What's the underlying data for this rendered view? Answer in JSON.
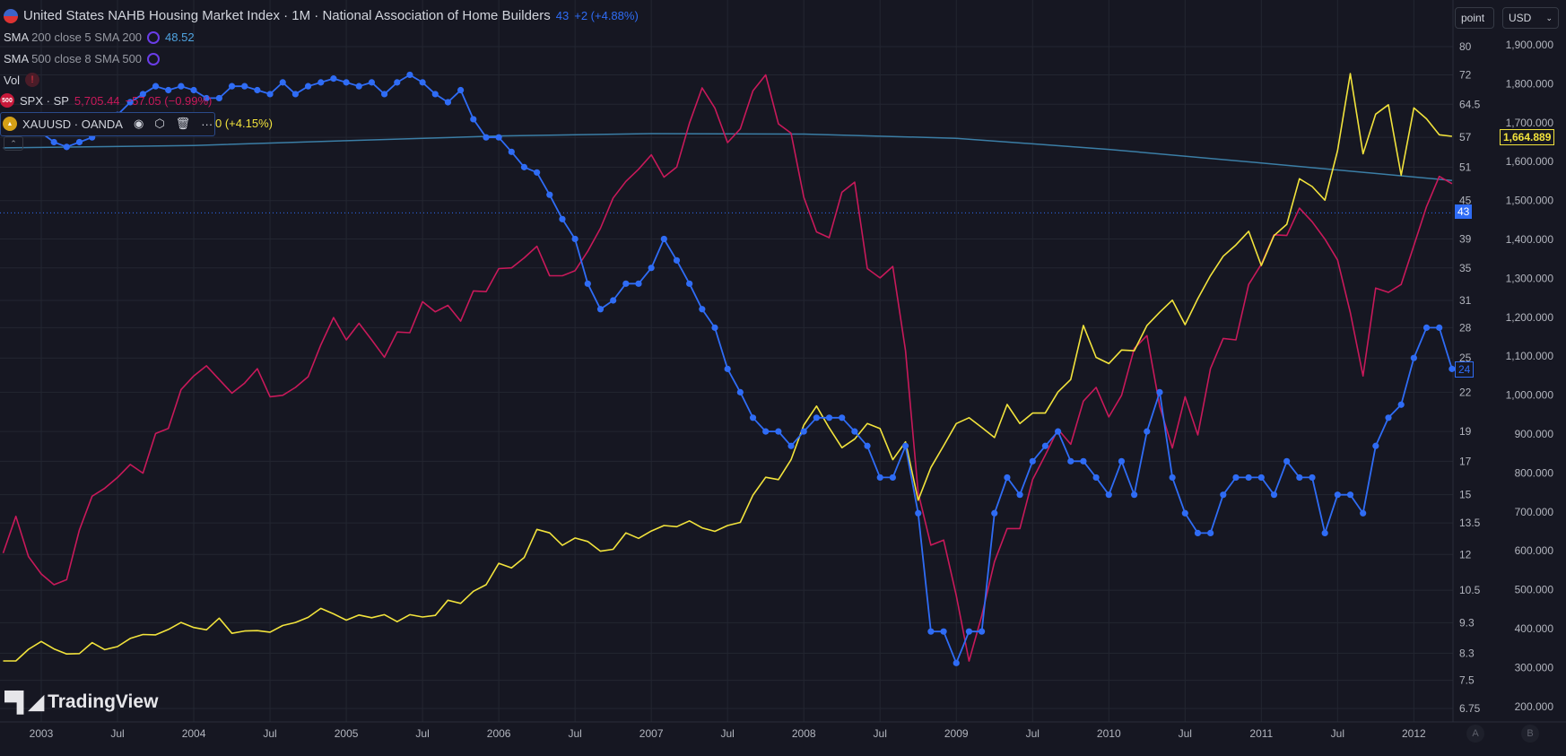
{
  "header": {
    "title": "United States NAHB Housing Market Index · 1M · National Association of Home Builders",
    "last_value": "43",
    "change": "+2 (+4.88%)"
  },
  "legend": {
    "sma200": {
      "label": "SMA",
      "params": "200 close 5 SMA 200",
      "value": "48.52"
    },
    "sma500": {
      "label": "SMA",
      "params": "500 close 8 SMA 500"
    },
    "vol": {
      "label": "Vol",
      "warning": "!"
    },
    "spx": {
      "badge": "500",
      "label": "SPX · SP",
      "value": "5,705.44",
      "change": "−57.05 (−0.99%)"
    },
    "xau": {
      "label": "XAUUSD · OANDA",
      "change": "0 (+4.15%)",
      "icons": [
        "eye-icon",
        "settings-icon",
        "trash-icon",
        "more-icon"
      ]
    }
  },
  "toolbar": {
    "scale_button": "point",
    "currency_select": "USD"
  },
  "axis_buttons": {
    "a": "A",
    "b": "B"
  },
  "logo": "TradingView",
  "price_tags": {
    "nahb_last": "43",
    "nahb_alt": "24",
    "gold_last": "1,664.889"
  },
  "colors": {
    "nahb": "#2f6cf5",
    "spx": "#c8195a",
    "gold": "#f2e33c",
    "sma": "#3b7ea6",
    "background": "#161722"
  },
  "chart_data": {
    "type": "line",
    "title": "United States NAHB Housing Market Index · 1M · National Association of Home Builders",
    "left_axis": {
      "name": "point",
      "scale": "log",
      "ticks": [
        "80",
        "72",
        "64.5",
        "57",
        "51",
        "45",
        "39",
        "35",
        "31",
        "28",
        "25",
        "22",
        "19",
        "17",
        "15",
        "13.5",
        "12",
        "10.5",
        "9.3",
        "8.3",
        "7.5",
        "6.75"
      ]
    },
    "right_axis": {
      "name": "USD",
      "scale": "linear",
      "range": [
        200,
        1900
      ],
      "ticks": [
        "1,900.000",
        "1,800.000",
        "1,700.000",
        "1,600.000",
        "1,500.000",
        "1,400.000",
        "1,300.000",
        "1,200.000",
        "1,100.000",
        "1,000.000",
        "900.000",
        "800.000",
        "700.000",
        "600.000",
        "500.000",
        "400.000",
        "300.000",
        "200.000"
      ]
    },
    "x_ticks": [
      {
        "label": "2003",
        "date": "2003-01"
      },
      {
        "label": "Jul",
        "date": "2003-07"
      },
      {
        "label": "2004",
        "date": "2004-01"
      },
      {
        "label": "Jul",
        "date": "2004-07"
      },
      {
        "label": "2005",
        "date": "2005-01"
      },
      {
        "label": "Jul",
        "date": "2005-07"
      },
      {
        "label": "2006",
        "date": "2006-01"
      },
      {
        "label": "Jul",
        "date": "2006-07"
      },
      {
        "label": "2007",
        "date": "2007-01"
      },
      {
        "label": "Jul",
        "date": "2007-07"
      },
      {
        "label": "2008",
        "date": "2008-01"
      },
      {
        "label": "Jul",
        "date": "2008-07"
      },
      {
        "label": "2009",
        "date": "2009-01"
      },
      {
        "label": "Jul",
        "date": "2009-07"
      },
      {
        "label": "2010",
        "date": "2010-01"
      },
      {
        "label": "Jul",
        "date": "2010-07"
      },
      {
        "label": "2011",
        "date": "2011-01"
      },
      {
        "label": "Jul",
        "date": "2011-07"
      },
      {
        "label": "2012",
        "date": "2012-01"
      }
    ],
    "grid": true,
    "x": [
      "2002-10",
      "2002-11",
      "2002-12",
      "2003-01",
      "2003-02",
      "2003-03",
      "2003-04",
      "2003-05",
      "2003-06",
      "2003-07",
      "2003-08",
      "2003-09",
      "2003-10",
      "2003-11",
      "2003-12",
      "2004-01",
      "2004-02",
      "2004-03",
      "2004-04",
      "2004-05",
      "2004-06",
      "2004-07",
      "2004-08",
      "2004-09",
      "2004-10",
      "2004-11",
      "2004-12",
      "2005-01",
      "2005-02",
      "2005-03",
      "2005-04",
      "2005-05",
      "2005-06",
      "2005-07",
      "2005-08",
      "2005-09",
      "2005-10",
      "2005-11",
      "2005-12",
      "2006-01",
      "2006-02",
      "2006-03",
      "2006-04",
      "2006-05",
      "2006-06",
      "2006-07",
      "2006-08",
      "2006-09",
      "2006-10",
      "2006-11",
      "2006-12",
      "2007-01",
      "2007-02",
      "2007-03",
      "2007-04",
      "2007-05",
      "2007-06",
      "2007-07",
      "2007-08",
      "2007-09",
      "2007-10",
      "2007-11",
      "2007-12",
      "2008-01",
      "2008-02",
      "2008-03",
      "2008-04",
      "2008-05",
      "2008-06",
      "2008-07",
      "2008-08",
      "2008-09",
      "2008-10",
      "2008-11",
      "2008-12",
      "2009-01",
      "2009-02",
      "2009-03",
      "2009-04",
      "2009-05",
      "2009-06",
      "2009-07",
      "2009-08",
      "2009-09",
      "2009-10",
      "2009-11",
      "2009-12",
      "2010-01",
      "2010-02",
      "2010-03",
      "2010-04",
      "2010-05",
      "2010-06",
      "2010-07",
      "2010-08",
      "2010-09",
      "2010-10",
      "2010-11",
      "2010-12",
      "2011-01",
      "2011-02",
      "2011-03",
      "2011-04",
      "2011-05",
      "2011-06",
      "2011-07",
      "2011-08",
      "2011-09",
      "2011-10",
      "2011-11",
      "2011-12",
      "2012-01",
      "2012-02",
      "2012-03",
      "2012-04"
    ],
    "series": [
      {
        "name": "United States NAHB Housing Market Index",
        "axis": "left",
        "markers": true,
        "values": [
          60,
          61,
          60,
          58,
          56,
          55,
          56,
          57,
          59,
          62,
          65,
          67,
          69,
          68,
          69,
          68,
          66,
          66,
          69,
          69,
          68,
          67,
          70,
          67,
          69,
          70,
          71,
          70,
          69,
          70,
          67,
          70,
          72,
          70,
          67,
          65,
          68,
          61,
          57,
          57,
          54,
          51,
          50,
          46,
          42,
          39,
          33,
          30,
          31,
          33,
          33,
          35,
          39,
          36,
          33,
          30,
          28,
          24,
          22,
          20,
          19,
          19,
          18,
          19,
          20,
          20,
          20,
          19,
          18,
          16,
          16,
          18,
          14,
          9,
          9,
          8,
          9,
          9,
          14,
          16,
          15,
          17,
          18,
          19,
          17,
          17,
          16,
          15,
          17,
          15,
          19,
          22,
          16,
          14,
          13,
          13,
          15,
          16,
          16,
          16,
          15,
          17,
          16,
          16,
          13,
          15,
          15,
          14,
          18,
          20,
          21,
          25,
          28,
          28,
          24
        ]
      },
      {
        "name": "SPX · SP",
        "axis": "none",
        "values": [
          885,
          936,
          880,
          856,
          841,
          848,
          917,
          964,
          975,
          990,
          1008,
          996,
          1051,
          1058,
          1112,
          1131,
          1145,
          1126,
          1107,
          1121,
          1141,
          1102,
          1104,
          1115,
          1130,
          1174,
          1212,
          1181,
          1204,
          1181,
          1157,
          1192,
          1191,
          1234,
          1220,
          1229,
          1207,
          1249,
          1248,
          1280,
          1281,
          1295,
          1311,
          1270,
          1270,
          1277,
          1304,
          1336,
          1378,
          1401,
          1418,
          1438,
          1407,
          1421,
          1482,
          1531,
          1503,
          1455,
          1474,
          1527,
          1549,
          1481,
          1468,
          1379,
          1331,
          1323,
          1386,
          1400,
          1280,
          1267,
          1283,
          1166,
          969,
          896,
          903,
          826,
          735,
          798,
          873,
          919,
          919,
          987,
          1021,
          1057,
          1036,
          1096,
          1115,
          1074,
          1104,
          1169,
          1187,
          1089,
          1031,
          1102,
          1049,
          1141,
          1183,
          1181,
          1258,
          1286,
          1327,
          1326,
          1364,
          1345,
          1321,
          1292,
          1219,
          1131,
          1253,
          1247,
          1258,
          1312,
          1366,
          1408,
          1398
        ]
      },
      {
        "name": "XAUUSD · OANDA",
        "axis": "right",
        "values": [
          317,
          317,
          347,
          367,
          348,
          335,
          336,
          364,
          346,
          354,
          375,
          385,
          384,
          398,
          416,
          403,
          397,
          427,
          388,
          394,
          395,
          391,
          408,
          416,
          429,
          452,
          438,
          422,
          435,
          428,
          436,
          418,
          436,
          430,
          434,
          473,
          465,
          496,
          513,
          568,
          556,
          583,
          655,
          646,
          614,
          633,
          624,
          599,
          604,
          646,
          632,
          651,
          665,
          662,
          677,
          659,
          650,
          665,
          673,
          743,
          789,
          783,
          834,
          923,
          972,
          916,
          865,
          887,
          927,
          914,
          834,
          880,
          730,
          814,
          870,
          927,
          942,
          917,
          891,
          976,
          927,
          954,
          954,
          1008,
          1040,
          1179,
          1097,
          1081,
          1116,
          1114,
          1179,
          1213,
          1244,
          1181,
          1248,
          1307,
          1357,
          1386,
          1421,
          1333,
          1410,
          1439,
          1556,
          1536,
          1501,
          1628,
          1826,
          1620,
          1722,
          1746,
          1565,
          1738,
          1710,
          1669,
          1664.889
        ]
      },
      {
        "name": "SMA 200",
        "axis": "left",
        "x": [
          "2002-10",
          "2004-01",
          "2005-01",
          "2006-01",
          "2007-01",
          "2008-01",
          "2009-01",
          "2010-01",
          "2011-01",
          "2012-04"
        ],
        "values": [
          54.8,
          55.3,
          56.3,
          57.3,
          57.8,
          57.7,
          56.8,
          54.5,
          51.8,
          48.52
        ]
      }
    ]
  }
}
